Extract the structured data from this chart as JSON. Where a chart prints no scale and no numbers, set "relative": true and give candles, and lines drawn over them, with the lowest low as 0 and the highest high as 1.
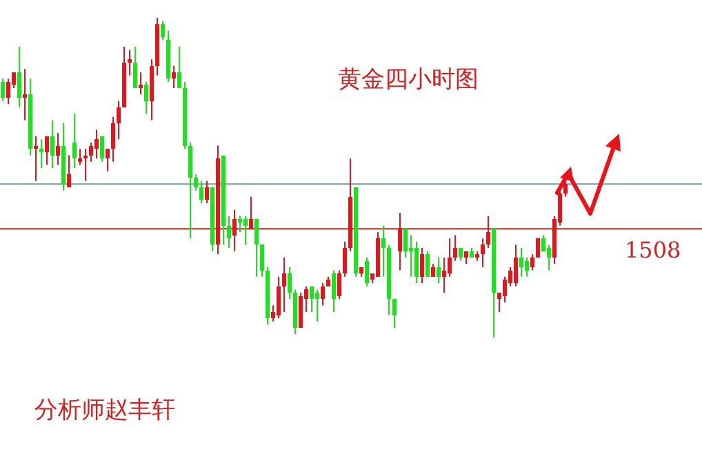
{
  "chart_data": {
    "type": "candlestick",
    "relative": true,
    "title": "黄金四小时图",
    "annotations": [
      "分析师赵丰轩",
      {
        "text": "1508",
        "y": 0.34
      }
    ],
    "ref_lines": [
      {
        "axis": "y",
        "value": 0.34,
        "color": "#d42020"
      },
      {
        "axis": "y",
        "value": 0.48,
        "color": "#6f9aa4"
      }
    ],
    "categories": [
      null,
      null,
      null,
      null,
      null,
      null,
      null,
      null,
      null,
      null,
      null,
      null,
      null,
      null,
      null,
      null,
      null,
      null,
      null,
      null,
      null,
      null,
      null,
      null,
      null,
      null,
      null,
      null,
      null,
      null,
      null,
      null,
      null,
      null,
      null,
      null,
      null,
      null,
      null,
      null,
      null,
      null,
      null,
      null,
      null,
      null,
      null,
      null,
      null,
      null,
      null,
      null,
      null,
      null,
      null,
      null,
      null,
      null,
      null,
      null,
      null,
      null,
      null,
      null,
      null,
      null,
      null,
      null,
      null,
      null,
      null,
      null,
      null,
      null,
      null,
      null,
      null,
      null,
      null,
      null,
      null,
      null,
      null,
      null,
      null,
      null,
      null,
      null,
      null,
      null,
      null,
      null,
      null,
      null,
      null,
      null,
      null,
      null,
      null,
      null,
      null,
      null,
      null
    ],
    "ohlc": [
      [
        0.8,
        0.81,
        0.74,
        0.75
      ],
      [
        0.75,
        0.81,
        0.73,
        0.8
      ],
      [
        0.79,
        0.83,
        0.78,
        0.83
      ],
      [
        0.83,
        0.91,
        0.72,
        0.75
      ],
      [
        0.75,
        0.84,
        0.68,
        0.76
      ],
      [
        0.76,
        0.81,
        0.57,
        0.59
      ],
      [
        0.59,
        0.63,
        0.49,
        0.6
      ],
      [
        0.59,
        0.62,
        0.53,
        0.58
      ],
      [
        0.58,
        0.63,
        0.54,
        0.63
      ],
      [
        0.63,
        0.68,
        0.53,
        0.57
      ],
      [
        0.57,
        0.64,
        0.54,
        0.6
      ],
      [
        0.6,
        0.67,
        0.46,
        0.48
      ],
      [
        0.47,
        0.57,
        0.47,
        0.51
      ],
      [
        0.61,
        0.7,
        0.53,
        0.56
      ],
      [
        0.55,
        0.59,
        0.54,
        0.56
      ],
      [
        0.56,
        0.59,
        0.49,
        0.57
      ],
      [
        0.57,
        0.61,
        0.55,
        0.6
      ],
      [
        0.59,
        0.65,
        0.56,
        0.62
      ],
      [
        0.63,
        0.63,
        0.55,
        0.56
      ],
      [
        0.56,
        0.59,
        0.52,
        0.59
      ],
      [
        0.59,
        0.69,
        0.55,
        0.67
      ],
      [
        0.67,
        0.74,
        0.62,
        0.72
      ],
      [
        0.72,
        0.91,
        0.72,
        0.86
      ],
      [
        0.86,
        0.9,
        0.82,
        0.87
      ],
      [
        0.86,
        0.91,
        0.78,
        0.78
      ],
      [
        0.78,
        0.83,
        0.76,
        0.79
      ],
      [
        0.79,
        0.8,
        0.7,
        0.74
      ],
      [
        0.74,
        0.87,
        0.68,
        0.85
      ],
      [
        0.85,
        1.0,
        0.82,
        0.98
      ],
      [
        0.98,
        0.99,
        0.93,
        0.94
      ],
      [
        0.93,
        0.96,
        0.8,
        0.81
      ],
      [
        0.81,
        0.85,
        0.78,
        0.83
      ],
      [
        0.83,
        0.91,
        0.78,
        0.78
      ],
      [
        0.78,
        0.8,
        0.59,
        0.6
      ],
      [
        0.6,
        0.61,
        0.31,
        0.5
      ],
      [
        0.5,
        0.51,
        0.46,
        0.47
      ],
      [
        0.47,
        0.49,
        0.42,
        0.43
      ],
      [
        0.43,
        0.49,
        0.42,
        0.47
      ],
      [
        0.47,
        0.47,
        0.27,
        0.29
      ],
      [
        0.29,
        0.6,
        0.26,
        0.56
      ],
      [
        0.57,
        0.57,
        0.29,
        0.35
      ],
      [
        0.35,
        0.38,
        0.28,
        0.31
      ],
      [
        0.32,
        0.4,
        0.27,
        0.37
      ],
      [
        0.37,
        0.38,
        0.33,
        0.36
      ],
      [
        0.37,
        0.38,
        0.29,
        0.35
      ],
      [
        0.34,
        0.44,
        0.34,
        0.37
      ],
      [
        0.37,
        0.37,
        0.19,
        0.29
      ],
      [
        0.29,
        0.29,
        0.19,
        0.21
      ],
      [
        0.21,
        0.22,
        0.04,
        0.06
      ],
      [
        0.06,
        0.1,
        0.05,
        0.08
      ],
      [
        0.07,
        0.19,
        0.06,
        0.16
      ],
      [
        0.16,
        0.25,
        0.08,
        0.2
      ],
      [
        0.2,
        0.22,
        0.12,
        0.14
      ],
      [
        0.14,
        0.15,
        0.01,
        0.03
      ],
      [
        0.03,
        0.14,
        0.03,
        0.13
      ],
      [
        0.12,
        0.16,
        0.08,
        0.15
      ],
      [
        0.16,
        0.16,
        0.08,
        0.12
      ],
      [
        0.14,
        0.15,
        0.05,
        0.12
      ],
      [
        0.12,
        0.17,
        0.1,
        0.16
      ],
      [
        0.16,
        0.19,
        0.16,
        0.18
      ],
      [
        0.2,
        0.21,
        0.08,
        0.12
      ],
      [
        0.13,
        0.21,
        0.12,
        0.2
      ],
      [
        0.2,
        0.3,
        0.19,
        0.28
      ],
      [
        0.28,
        0.56,
        0.27,
        0.44
      ],
      [
        0.47,
        0.47,
        0.19,
        0.2
      ],
      [
        0.2,
        0.22,
        0.19,
        0.22
      ],
      [
        0.24,
        0.25,
        0.16,
        0.17
      ],
      [
        0.18,
        0.2,
        0.17,
        0.2
      ],
      [
        0.19,
        0.33,
        0.19,
        0.31
      ],
      [
        0.31,
        0.35,
        0.19,
        0.28
      ],
      [
        0.28,
        0.29,
        0.07,
        0.12
      ],
      [
        0.12,
        0.12,
        0.03,
        0.07
      ],
      [
        0.27,
        0.39,
        0.21,
        0.34
      ],
      [
        0.34,
        0.34,
        0.25,
        0.27
      ],
      [
        0.28,
        0.32,
        0.19,
        0.27
      ],
      [
        0.28,
        0.3,
        0.17,
        0.19
      ],
      [
        0.19,
        0.28,
        0.17,
        0.26
      ],
      [
        0.26,
        0.27,
        0.19,
        0.19
      ],
      [
        0.19,
        0.23,
        0.19,
        0.22
      ],
      [
        0.22,
        0.25,
        0.17,
        0.19
      ],
      [
        0.19,
        0.25,
        0.14,
        0.21
      ],
      [
        0.2,
        0.31,
        0.19,
        0.25
      ],
      [
        0.25,
        0.32,
        0.24,
        0.28
      ],
      [
        0.28,
        0.28,
        0.24,
        0.25
      ],
      [
        0.25,
        0.27,
        0.23,
        0.27
      ],
      [
        0.27,
        0.28,
        0.25,
        0.25
      ],
      [
        0.25,
        0.27,
        0.24,
        0.26
      ],
      [
        0.26,
        0.31,
        0.22,
        0.29
      ],
      [
        0.29,
        0.38,
        0.28,
        0.33
      ],
      [
        0.34,
        0.34,
        0.0,
        0.14
      ],
      [
        0.12,
        0.14,
        0.08,
        0.14
      ],
      [
        0.13,
        0.19,
        0.11,
        0.18
      ],
      [
        0.17,
        0.22,
        0.16,
        0.21
      ],
      [
        0.17,
        0.29,
        0.16,
        0.25
      ],
      [
        0.25,
        0.28,
        0.19,
        0.22
      ],
      [
        0.24,
        0.25,
        0.19,
        0.21
      ],
      [
        0.22,
        0.26,
        0.21,
        0.25
      ],
      [
        0.25,
        0.31,
        0.25,
        0.31
      ],
      [
        0.31,
        0.32,
        0.27,
        0.27
      ],
      [
        0.28,
        0.29,
        0.21,
        0.25
      ],
      [
        0.25,
        0.38,
        0.23,
        0.37
      ],
      [
        0.36,
        0.46,
        0.35,
        0.45
      ],
      [
        0.45,
        0.49,
        0.44,
        0.48
      ]
    ]
  }
}
